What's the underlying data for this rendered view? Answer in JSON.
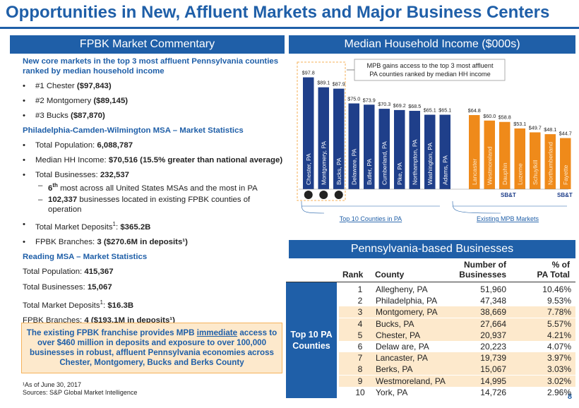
{
  "title": "Opportunities in New, Affluent Markets and Major Business Centers",
  "left": {
    "header": "FPBK Market Commentary",
    "intro": "New core markets in the top 3 most affluent Pennsylvania counties ranked by median household income",
    "rank1_label": "#1 Chester ",
    "rank1_value": "($97,843)",
    "rank2_label": "#2 Montgomery ",
    "rank2_value": "($89,145)",
    "rank3_label": "#3 Bucks ",
    "rank3_value": "($87,870)",
    "msa_title": "Philadelphia-Camden-Wilmington MSA – Market Statistics",
    "pop_label": "Total Population: ",
    "pop_value": "6,088,787",
    "hh_label": "Median HH Income: ",
    "hh_value": "$70,516 (15.5% greater than national average)",
    "biz_label": "Total Businesses: ",
    "biz_value": "232,537",
    "sub1_rank": "6",
    "sub1_sup": "th",
    "sub1_text": " most across all United States MSAs and the most in PA",
    "sub2_bold": "102,337",
    "sub2_text": " businesses located in existing FPBK counties of operation",
    "dep_label": "Total Market Deposits",
    "dep_sup": "1",
    "dep_sep": ": ",
    "dep_value": "$365.2B",
    "br_label": "FPBK Branches: ",
    "br_value": "3 ($270.6M in deposits¹)",
    "reading_title": "Reading MSA – Market Statistics",
    "r_pop_label": "Total Population: ",
    "r_pop_value": "415,367",
    "r_biz_label": "Total Businesses: ",
    "r_biz_value": "15,067",
    "r_dep_label": "Total Market Deposits",
    "r_dep_sup": "1",
    "r_dep_sep": ": ",
    "r_dep_value": "$16.3B",
    "r_br_label": "FPBK Branches: ",
    "r_br_value": "4 ($193.1M in deposits¹)"
  },
  "callout": {
    "pre": "The existing FPBK franchise provides MPB ",
    "emph": "immediate",
    "post": " access to over $460 million in deposits and exposure to over 100,000 businesses in robust, affluent Pennsylvania economies across Chester, Montgomery, Bucks and Berks County"
  },
  "footnote1": "¹As of June 30, 2017",
  "footnote2": "Sources: S&P Global Market Intelligence",
  "page_number": "8",
  "chart_data": {
    "type": "bar",
    "title": "Median Household Income ($000s)",
    "categories": [
      "Chester, PA",
      "Montgomery, PA",
      "Bucks, PA",
      "Delaware, PA",
      "Butler, PA",
      "Cumberland, PA",
      "Pike, PA",
      "Northampton, PA",
      "Washington, PA",
      "Adams, PA",
      "Lancaster",
      "Westmoreland",
      "Dauphin",
      "Luzerne",
      "Schuylkill",
      "Northumberland",
      "Fayette"
    ],
    "values": [
      97.8,
      89.1,
      87.9,
      75.0,
      73.9,
      70.3,
      69.2,
      68.5,
      65.1,
      65.1,
      64.8,
      60.0,
      58.8,
      53.1,
      49.7,
      48.1,
      44.7
    ],
    "value_labels": [
      "$97.8",
      "$89.1",
      "$87.9",
      "$75.0",
      "$73.9",
      "$70.3",
      "$69.2",
      "$68.5",
      "$65.1",
      "$65.1",
      "$64.8",
      "$60.0",
      "$58.8",
      "$53.1",
      "$49.7",
      "$48.1",
      "$44.7"
    ],
    "series_colors": [
      "#1f3f8a",
      "#1f3f8a",
      "#1f3f8a",
      "#1f3f8a",
      "#1f3f8a",
      "#1f3f8a",
      "#1f3f8a",
      "#1f3f8a",
      "#1f3f8a",
      "#1f3f8a",
      "#ef8a1a",
      "#ef8a1a",
      "#ef8a1a",
      "#ef8a1a",
      "#ef8a1a",
      "#ef8a1a",
      "#ef8a1a"
    ],
    "ylim": [
      0,
      100
    ],
    "groups": [
      "Top 10 Counties in PA",
      "Existing MPB Markets"
    ],
    "annotation": "MPB gains access to the top 3 most affluent PA counties ranked by median HH income",
    "logo_labels": [
      "SB&T",
      "SB&T"
    ]
  },
  "businesses": {
    "header": "Pennsylvania-based Businesses",
    "col_rank": "Rank",
    "col_county": "County",
    "col_num1": "Number of",
    "col_num2": "Businesses",
    "col_pct1": "% of",
    "col_pct2": "PA Total",
    "side_label1": "Top 10 PA",
    "side_label2": "Counties",
    "rows": [
      {
        "rank": "1",
        "county": "Allegheny, PA",
        "num": "51,960",
        "pct": "10.46%"
      },
      {
        "rank": "2",
        "county": "Philadelphia, PA",
        "num": "47,348",
        "pct": "9.53%"
      },
      {
        "rank": "3",
        "county": "Montgomery, PA",
        "num": "38,669",
        "pct": "7.78%"
      },
      {
        "rank": "4",
        "county": "Bucks, PA",
        "num": "27,664",
        "pct": "5.57%"
      },
      {
        "rank": "5",
        "county": "Chester, PA",
        "num": "20,937",
        "pct": "4.21%"
      },
      {
        "rank": "6",
        "county": "Delaw are, PA",
        "num": "20,223",
        "pct": "4.07%"
      },
      {
        "rank": "7",
        "county": "Lancaster, PA",
        "num": "19,739",
        "pct": "3.97%"
      },
      {
        "rank": "8",
        "county": "Berks, PA",
        "num": "15,067",
        "pct": "3.03%"
      },
      {
        "rank": "9",
        "county": "Westmoreland, PA",
        "num": "14,995",
        "pct": "3.02%"
      },
      {
        "rank": "10",
        "county": "York, PA",
        "num": "14,726",
        "pct": "2.96%"
      }
    ],
    "highlighted_rows": [
      3,
      4,
      5,
      7,
      8,
      9
    ],
    "highlight_color": "#fde9cc"
  }
}
